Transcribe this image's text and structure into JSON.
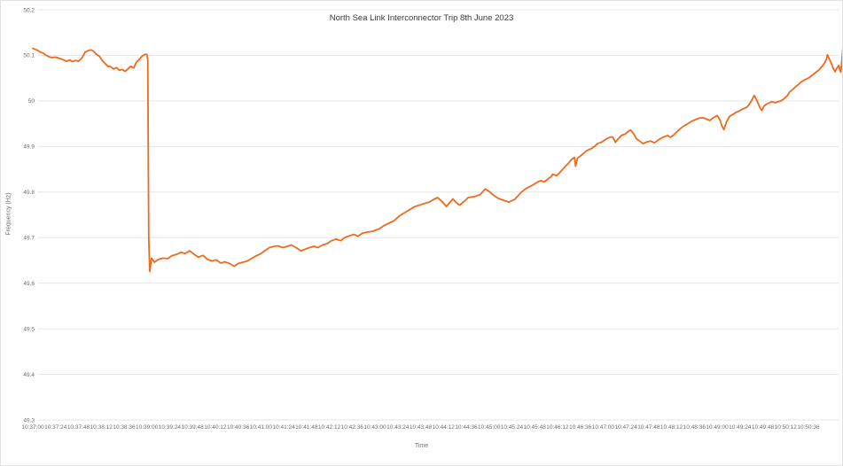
{
  "chart_data": {
    "type": "line",
    "title": "North Sea Link Interconnector Trip 8th June 2023",
    "xlabel": "Time",
    "ylabel": "Frequency (Hz)",
    "ylim": [
      49.3,
      50.2
    ],
    "grid": "horizontal",
    "legend_position": "none",
    "line_color": "#ED6A1F",
    "grid_color": "#E6E6E6",
    "y_ticks": [
      "50.2",
      "50.1",
      "50",
      "49.9",
      "49.8",
      "49.7",
      "49.6",
      "49.5",
      "49.4",
      "49.3"
    ],
    "x_ticks": [
      "10:37:00",
      "10:37:24",
      "10:37:48",
      "10:38:12",
      "10:38:36",
      "10:39:00",
      "10:39:24",
      "10:39:48",
      "10:40:12",
      "10:40:36",
      "10:41:00",
      "10:41:24",
      "10:41:48",
      "10:42:12",
      "10:42:36",
      "10:43:00",
      "10:43:24",
      "10:43:48",
      "10:44:12",
      "10:44:36",
      "10:45:00",
      "10:45:24",
      "10:45:48",
      "10:46:12",
      "10:46:36",
      "10:47:00",
      "10:47:24",
      "10:47:48",
      "10:48:12",
      "10:48:36",
      "10:49:00",
      "10:49:24",
      "10:49:48",
      "10:50:12",
      "10:50:36"
    ],
    "x_tick_interval_seconds": 24,
    "x_unit": "seconds after 10:37:00",
    "series": [
      {
        "name": "Frequency (Hz)",
        "points": [
          [
            0,
            50.115
          ],
          [
            4,
            50.112
          ],
          [
            8,
            50.107
          ],
          [
            11,
            50.105
          ],
          [
            14,
            50.1
          ],
          [
            17,
            50.097
          ],
          [
            20,
            50.095
          ],
          [
            24,
            50.096
          ],
          [
            27,
            50.094
          ],
          [
            30,
            50.092
          ],
          [
            33,
            50.089
          ],
          [
            36,
            50.087
          ],
          [
            39,
            50.09
          ],
          [
            42,
            50.086
          ],
          [
            45,
            50.089
          ],
          [
            48,
            50.087
          ],
          [
            52,
            50.095
          ],
          [
            55,
            50.107
          ],
          [
            58,
            50.11
          ],
          [
            61,
            50.112
          ],
          [
            64,
            50.109
          ],
          [
            67,
            50.102
          ],
          [
            70,
            50.098
          ],
          [
            73,
            50.089
          ],
          [
            76,
            50.082
          ],
          [
            79,
            50.076
          ],
          [
            82,
            50.075
          ],
          [
            85,
            50.07
          ],
          [
            88,
            50.073
          ],
          [
            91,
            50.067
          ],
          [
            94,
            50.069
          ],
          [
            97,
            50.065
          ],
          [
            100,
            50.07
          ],
          [
            103,
            50.076
          ],
          [
            106,
            50.072
          ],
          [
            109,
            50.085
          ],
          [
            112,
            50.091
          ],
          [
            115,
            50.098
          ],
          [
            118,
            50.102
          ],
          [
            120,
            50.102
          ],
          [
            121,
            50.09
          ],
          [
            122,
            49.7
          ],
          [
            123,
            49.626
          ],
          [
            125,
            49.655
          ],
          [
            128,
            49.646
          ],
          [
            132,
            49.652
          ],
          [
            137,
            49.655
          ],
          [
            142,
            49.654
          ],
          [
            146,
            49.66
          ],
          [
            151,
            49.663
          ],
          [
            156,
            49.668
          ],
          [
            160,
            49.665
          ],
          [
            165,
            49.671
          ],
          [
            170,
            49.663
          ],
          [
            174,
            49.657
          ],
          [
            179,
            49.661
          ],
          [
            184,
            49.652
          ],
          [
            188,
            49.649
          ],
          [
            193,
            49.651
          ],
          [
            198,
            49.644
          ],
          [
            202,
            49.647
          ],
          [
            207,
            49.643
          ],
          [
            212,
            49.637
          ],
          [
            216,
            49.643
          ],
          [
            221,
            49.646
          ],
          [
            226,
            49.649
          ],
          [
            230,
            49.654
          ],
          [
            235,
            49.66
          ],
          [
            240,
            49.665
          ],
          [
            244,
            49.671
          ],
          [
            249,
            49.678
          ],
          [
            254,
            49.681
          ],
          [
            258,
            49.682
          ],
          [
            263,
            49.678
          ],
          [
            268,
            49.681
          ],
          [
            272,
            49.684
          ],
          [
            277,
            49.678
          ],
          [
            282,
            49.671
          ],
          [
            286,
            49.674
          ],
          [
            291,
            49.678
          ],
          [
            296,
            49.681
          ],
          [
            300,
            49.678
          ],
          [
            305,
            49.684
          ],
          [
            310,
            49.687
          ],
          [
            314,
            49.693
          ],
          [
            319,
            49.697
          ],
          [
            324,
            49.693
          ],
          [
            328,
            49.7
          ],
          [
            333,
            49.704
          ],
          [
            338,
            49.707
          ],
          [
            342,
            49.703
          ],
          [
            347,
            49.71
          ],
          [
            352,
            49.712
          ],
          [
            358,
            49.714
          ],
          [
            365,
            49.72
          ],
          [
            370,
            49.727
          ],
          [
            380,
            49.737
          ],
          [
            386,
            49.748
          ],
          [
            393,
            49.757
          ],
          [
            402,
            49.768
          ],
          [
            409,
            49.773
          ],
          [
            417,
            49.778
          ],
          [
            422,
            49.784
          ],
          [
            426,
            49.788
          ],
          [
            432,
            49.776
          ],
          [
            435,
            49.768
          ],
          [
            439,
            49.778
          ],
          [
            442,
            49.785
          ],
          [
            446,
            49.776
          ],
          [
            449,
            49.771
          ],
          [
            454,
            49.78
          ],
          [
            458,
            49.788
          ],
          [
            465,
            49.79
          ],
          [
            471,
            49.795
          ],
          [
            476,
            49.807
          ],
          [
            481,
            49.8
          ],
          [
            486,
            49.791
          ],
          [
            490,
            49.786
          ],
          [
            495,
            49.782
          ],
          [
            501,
            49.778
          ],
          [
            507,
            49.784
          ],
          [
            514,
            49.8
          ],
          [
            519,
            49.808
          ],
          [
            523,
            49.812
          ],
          [
            528,
            49.818
          ],
          [
            532,
            49.823
          ],
          [
            535,
            49.825
          ],
          [
            538,
            49.822
          ],
          [
            542,
            49.829
          ],
          [
            545,
            49.833
          ],
          [
            547,
            49.839
          ],
          [
            551,
            49.836
          ],
          [
            554,
            49.842
          ],
          [
            557,
            49.849
          ],
          [
            560,
            49.856
          ],
          [
            563,
            49.862
          ],
          [
            567,
            49.872
          ],
          [
            570,
            49.876
          ],
          [
            571,
            49.857
          ],
          [
            573,
            49.874
          ],
          [
            576,
            49.879
          ],
          [
            579,
            49.884
          ],
          [
            582,
            49.89
          ],
          [
            585,
            49.893
          ],
          [
            588,
            49.896
          ],
          [
            591,
            49.9
          ],
          [
            594,
            49.906
          ],
          [
            598,
            49.909
          ],
          [
            600,
            49.912
          ],
          [
            603,
            49.916
          ],
          [
            607,
            49.92
          ],
          [
            610,
            49.921
          ],
          [
            613,
            49.909
          ],
          [
            616,
            49.917
          ],
          [
            619,
            49.924
          ],
          [
            623,
            49.927
          ],
          [
            627,
            49.934
          ],
          [
            629,
            49.936
          ],
          [
            632,
            49.928
          ],
          [
            635,
            49.917
          ],
          [
            639,
            49.911
          ],
          [
            642,
            49.906
          ],
          [
            646,
            49.91
          ],
          [
            650,
            49.912
          ],
          [
            654,
            49.908
          ],
          [
            656,
            49.911
          ],
          [
            660,
            49.917
          ],
          [
            664,
            49.921
          ],
          [
            668,
            49.924
          ],
          [
            671,
            49.92
          ],
          [
            674,
            49.925
          ],
          [
            678,
            49.933
          ],
          [
            681,
            49.939
          ],
          [
            685,
            49.945
          ],
          [
            689,
            49.95
          ],
          [
            693,
            49.955
          ],
          [
            696,
            49.958
          ],
          [
            701,
            49.962
          ],
          [
            705,
            49.963
          ],
          [
            709,
            49.96
          ],
          [
            712,
            49.957
          ],
          [
            716,
            49.963
          ],
          [
            720,
            49.968
          ],
          [
            723,
            49.958
          ],
          [
            725,
            49.945
          ],
          [
            727,
            49.937
          ],
          [
            730,
            49.955
          ],
          [
            733,
            49.966
          ],
          [
            737,
            49.971
          ],
          [
            740,
            49.975
          ],
          [
            744,
            49.979
          ],
          [
            747,
            49.982
          ],
          [
            751,
            49.986
          ],
          [
            753,
            49.99
          ],
          [
            756,
            50.0
          ],
          [
            759,
            50.012
          ],
          [
            762,
            50.0
          ],
          [
            765,
            49.985
          ],
          [
            767,
            49.979
          ],
          [
            769,
            49.988
          ],
          [
            772,
            49.993
          ],
          [
            775,
            49.996
          ],
          [
            778,
            49.998
          ],
          [
            781,
            49.996
          ],
          [
            784,
            49.998
          ],
          [
            787,
            50.0
          ],
          [
            790,
            50.004
          ],
          [
            794,
            50.012
          ],
          [
            796,
            50.019
          ],
          [
            800,
            50.026
          ],
          [
            803,
            50.032
          ],
          [
            806,
            50.037
          ],
          [
            808,
            50.041
          ],
          [
            812,
            50.046
          ],
          [
            815,
            50.049
          ],
          [
            818,
            50.053
          ],
          [
            821,
            50.058
          ],
          [
            824,
            50.063
          ],
          [
            827,
            50.068
          ],
          [
            830,
            50.075
          ],
          [
            833,
            50.083
          ],
          [
            835,
            50.092
          ],
          [
            836,
            50.101
          ],
          [
            838,
            50.092
          ],
          [
            840,
            50.083
          ],
          [
            842,
            50.072
          ],
          [
            844,
            50.064
          ],
          [
            846,
            50.072
          ],
          [
            848,
            50.078
          ],
          [
            849,
            50.068
          ],
          [
            850,
            50.063
          ],
          [
            851,
            50.083
          ],
          [
            852,
            50.11
          ],
          [
            853,
            50.138
          ]
        ]
      }
    ]
  }
}
